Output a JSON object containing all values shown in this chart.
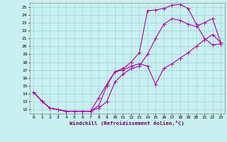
{
  "xlabel": "Windchill (Refroidissement éolien,°C)",
  "bg_color": "#c8f0f0",
  "grid_color": "#a8d8d8",
  "line_color": "#aa00aa",
  "xlim": [
    -0.5,
    23.5
  ],
  "ylim": [
    11.5,
    25.5
  ],
  "xticks": [
    0,
    1,
    2,
    3,
    4,
    5,
    6,
    7,
    8,
    9,
    10,
    11,
    12,
    13,
    14,
    15,
    16,
    17,
    18,
    19,
    20,
    21,
    22,
    23
  ],
  "yticks": [
    12,
    13,
    14,
    15,
    16,
    17,
    18,
    19,
    20,
    21,
    22,
    23,
    24,
    25
  ],
  "curve1_x": [
    0,
    1,
    2,
    3,
    4,
    5,
    6,
    7,
    8,
    9,
    10,
    11,
    12,
    13,
    14,
    15,
    16,
    17,
    18,
    19,
    20,
    21,
    22,
    23
  ],
  "curve1_y": [
    14.2,
    13.1,
    12.2,
    12.0,
    11.8,
    11.8,
    11.8,
    11.8,
    12.5,
    15.0,
    16.8,
    17.2,
    18.0,
    19.2,
    24.5,
    24.6,
    24.8,
    25.2,
    25.3,
    24.8,
    22.8,
    21.0,
    20.2,
    20.3
  ],
  "curve2_x": [
    0,
    1,
    2,
    3,
    4,
    5,
    6,
    7,
    8,
    9,
    10,
    11,
    12,
    13,
    14,
    15,
    16,
    17,
    18,
    19,
    20,
    21,
    22,
    23
  ],
  "curve2_y": [
    14.2,
    13.1,
    12.2,
    12.0,
    11.8,
    11.8,
    11.8,
    11.8,
    12.2,
    13.0,
    15.5,
    16.5,
    17.2,
    17.5,
    19.0,
    21.0,
    22.8,
    23.5,
    23.3,
    22.8,
    22.5,
    23.0,
    23.5,
    20.5
  ],
  "curve3_x": [
    0,
    1,
    2,
    3,
    4,
    5,
    6,
    7,
    8,
    9,
    10,
    11,
    12,
    13,
    14,
    15,
    16,
    17,
    18,
    19,
    20,
    21,
    22,
    23
  ],
  "curve3_y": [
    14.2,
    13.1,
    12.2,
    12.0,
    11.8,
    11.8,
    11.8,
    11.8,
    13.5,
    15.2,
    16.8,
    17.0,
    17.5,
    17.8,
    17.5,
    15.2,
    17.2,
    17.8,
    18.5,
    19.2,
    20.0,
    20.8,
    21.5,
    20.5
  ]
}
